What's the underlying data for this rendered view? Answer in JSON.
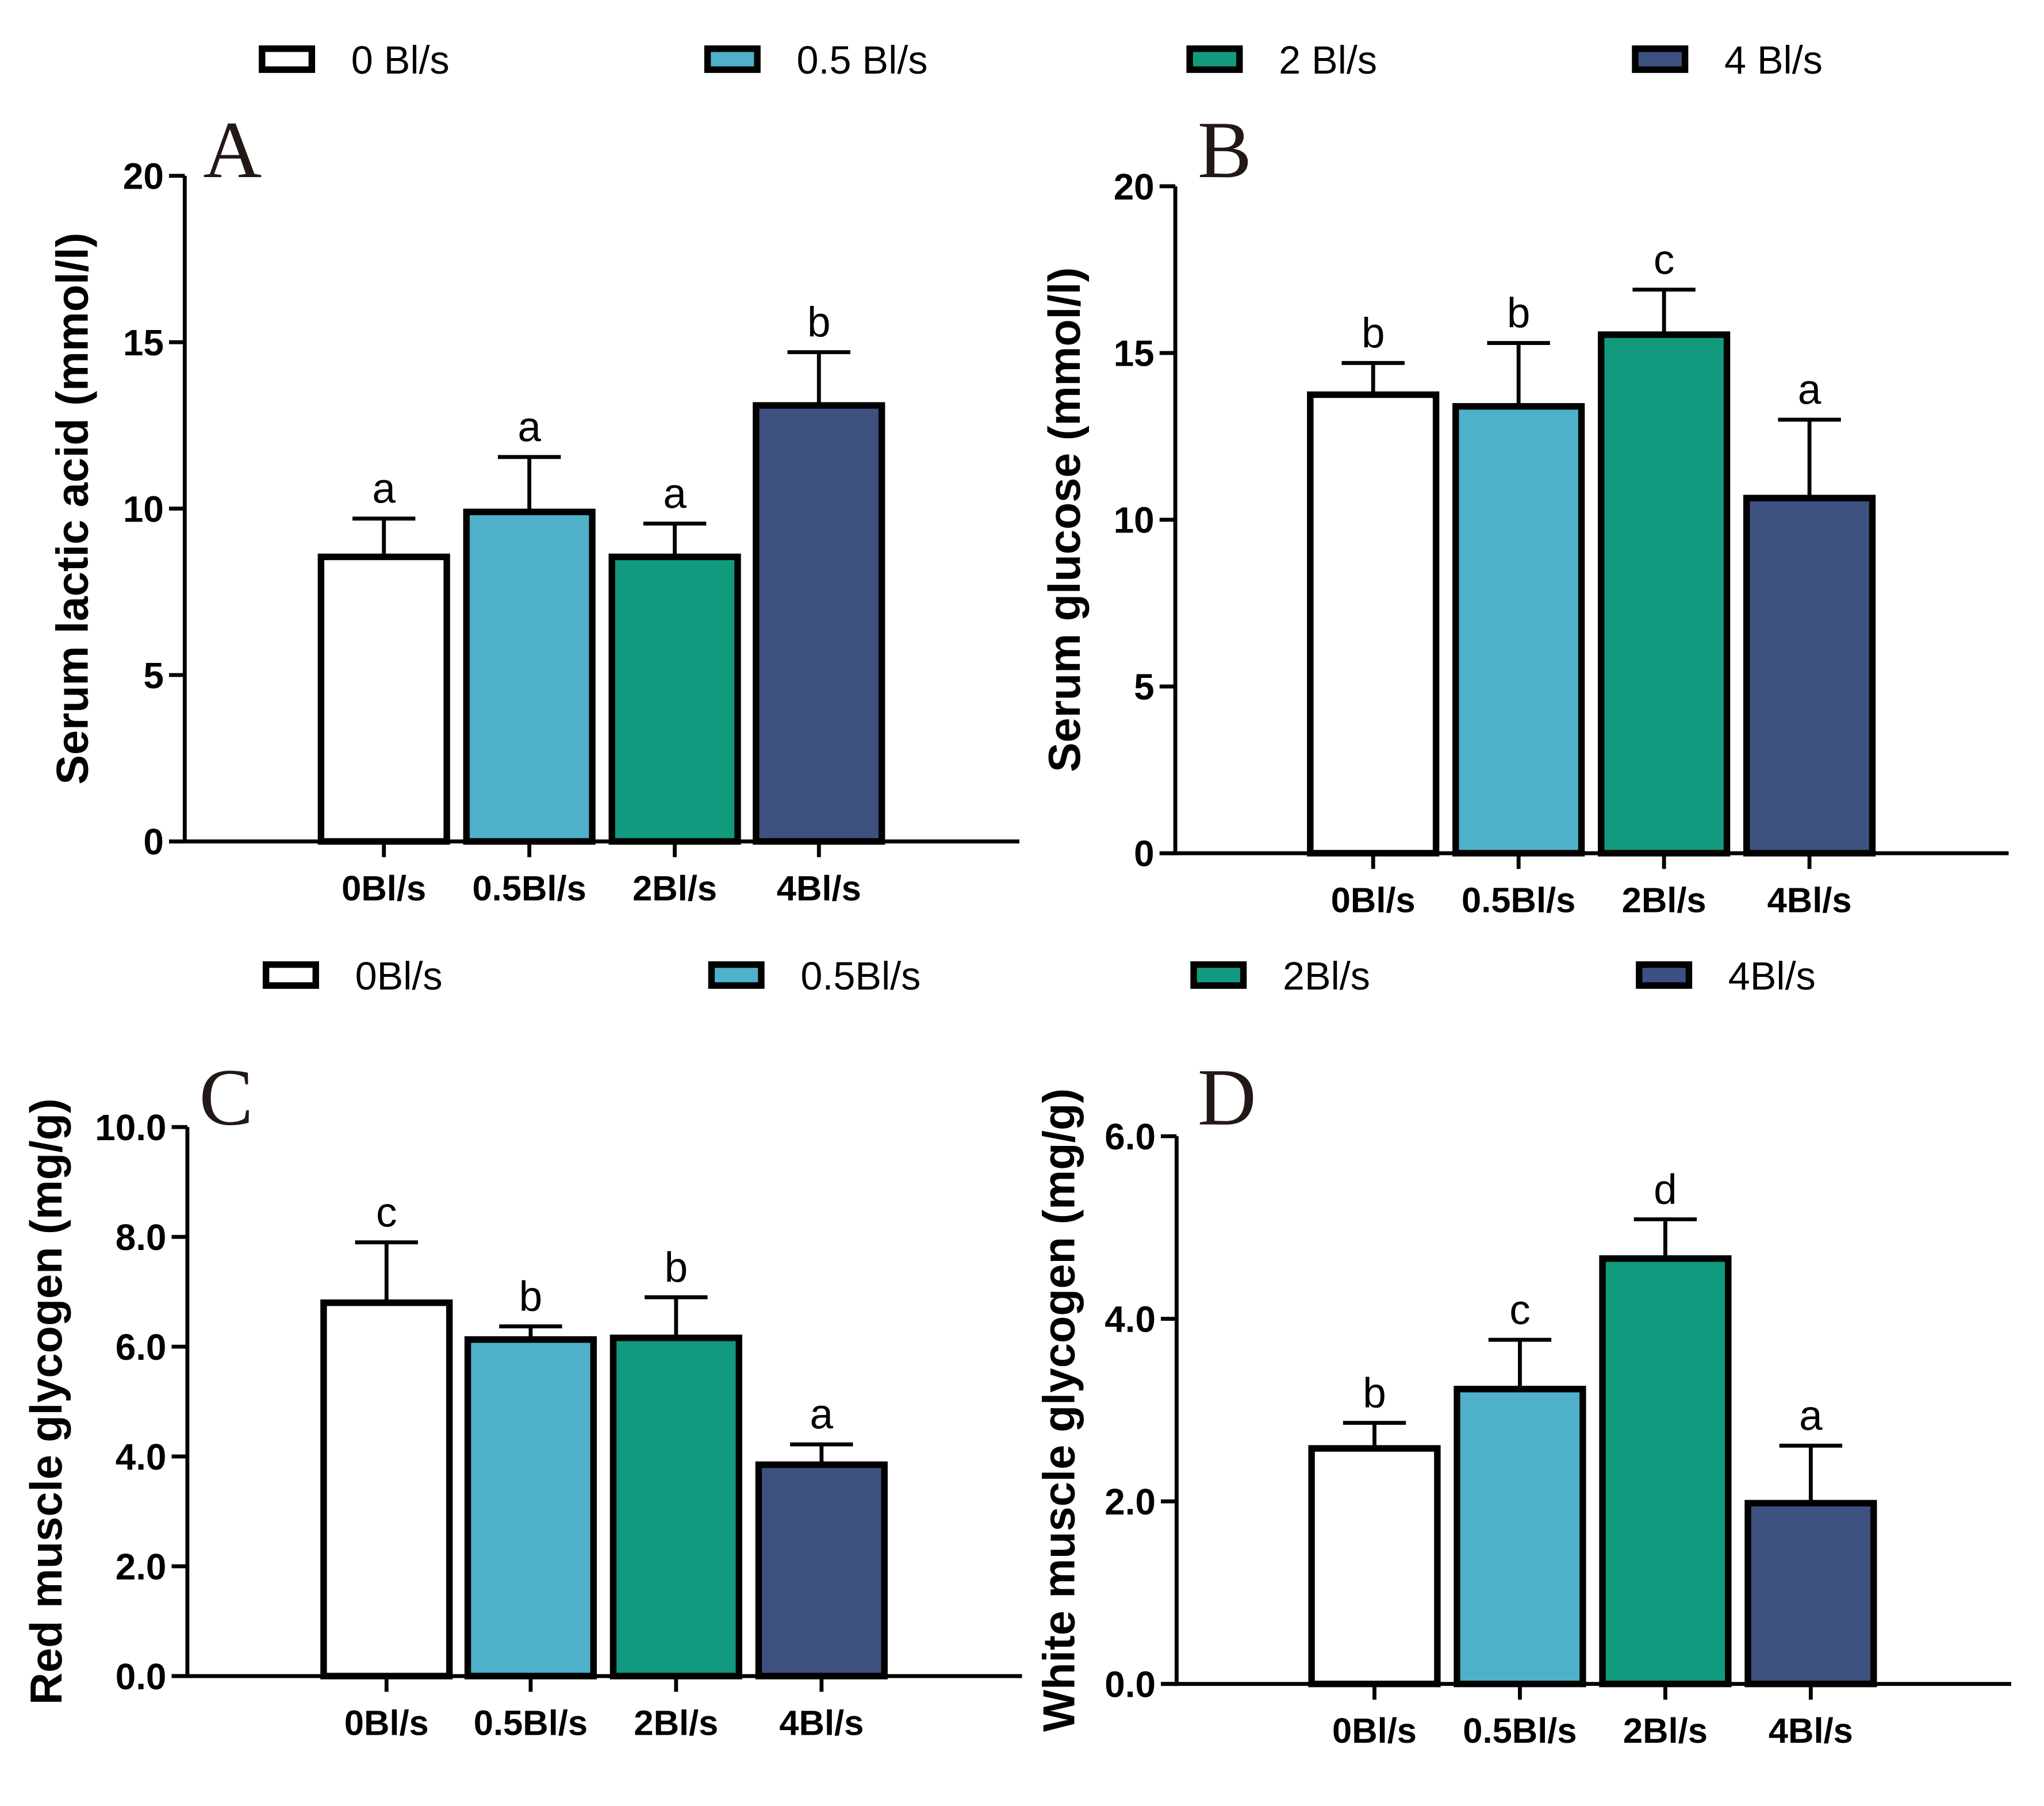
{
  "colors": {
    "0": "#ffffff",
    "0.5": "#4eb1c9",
    "2": "#129a7e",
    "4": "#3d5180",
    "stroke": "#000000"
  },
  "legends": [
    {
      "items": [
        "0 Bl/s",
        "0.5 Bl/s",
        "2 Bl/s",
        "4 Bl/s"
      ]
    },
    {
      "items": [
        "0Bl/s",
        "0.5Bl/s",
        "2Bl/s",
        "4Bl/s"
      ]
    }
  ],
  "chart_data": [
    {
      "type": "bar",
      "panel": "A",
      "title": "",
      "ylabel": "Serum lactic acid (mmol/l)",
      "xlabel": "",
      "categories": [
        "0Bl/s",
        "0.5Bl/s",
        "2Bl/s",
        "4Bl/s"
      ],
      "values": [
        8.55,
        9.9,
        8.55,
        13.1
      ],
      "error_upper": [
        9.7,
        11.55,
        9.55,
        14.7
      ],
      "significance": [
        "a",
        "a",
        "a",
        "b"
      ],
      "ylim": [
        0,
        20
      ],
      "yticks": [
        0,
        5,
        10,
        15,
        20
      ],
      "ytick_labels": [
        "0",
        "5",
        "10",
        "15",
        "20"
      ],
      "grid": false
    },
    {
      "type": "bar",
      "panel": "B",
      "title": "",
      "ylabel": "Serum glucose (mmol/l)",
      "xlabel": "",
      "categories": [
        "0Bl/s",
        "0.5Bl/s",
        "2Bl/s",
        "4Bl/s"
      ],
      "values": [
        13.75,
        13.4,
        15.55,
        10.65
      ],
      "error_upper": [
        14.7,
        15.3,
        16.9,
        13.0
      ],
      "significance": [
        "b",
        "b",
        "c",
        "a"
      ],
      "ylim": [
        0,
        20
      ],
      "yticks": [
        0,
        5,
        10,
        15,
        20
      ],
      "ytick_labels": [
        "0",
        "5",
        "10",
        "15",
        "20"
      ],
      "grid": false
    },
    {
      "type": "bar",
      "panel": "C",
      "title": "",
      "ylabel": "Red muscle glycogen (mg/g)",
      "xlabel": "",
      "categories": [
        "0Bl/s",
        "0.5Bl/s",
        "2Bl/s",
        "4Bl/s"
      ],
      "values": [
        6.8,
        6.13,
        6.16,
        3.85
      ],
      "error_upper": [
        7.9,
        6.37,
        6.9,
        4.22
      ],
      "significance": [
        "c",
        "b",
        "b",
        "a"
      ],
      "ylim": [
        0,
        10
      ],
      "yticks": [
        0,
        2,
        4,
        6,
        8,
        10
      ],
      "ytick_labels": [
        "0.0",
        "2.0",
        "4.0",
        "6.0",
        "8.0",
        "10.0"
      ],
      "grid": false
    },
    {
      "type": "bar",
      "panel": "D",
      "title": "",
      "ylabel": "White muscle glycogen (mg/g)",
      "xlabel": "",
      "categories": [
        "0Bl/s",
        "0.5Bl/s",
        "2Bl/s",
        "4Bl/s"
      ],
      "values": [
        2.58,
        3.23,
        4.66,
        1.98
      ],
      "error_upper": [
        2.86,
        3.77,
        5.09,
        2.61
      ],
      "significance": [
        "b",
        "c",
        "d",
        "a"
      ],
      "ylim": [
        0,
        6
      ],
      "yticks": [
        0,
        2,
        4,
        6
      ],
      "ytick_labels": [
        "0.0",
        "2.0",
        "4.0",
        "6.0"
      ],
      "grid": false
    }
  ]
}
